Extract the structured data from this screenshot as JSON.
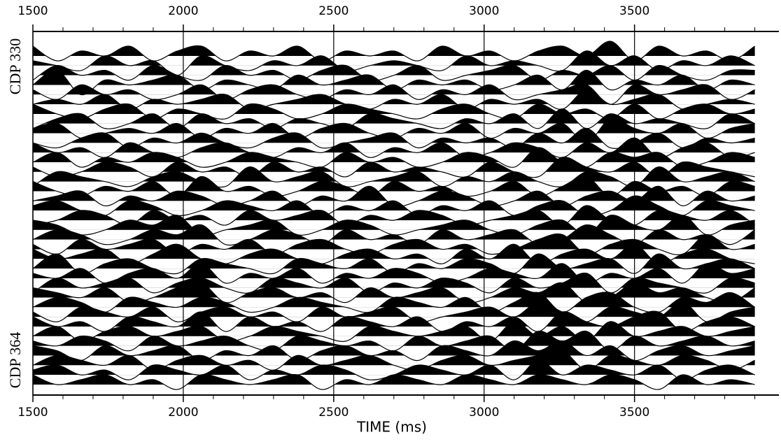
{
  "chart_data": {
    "type": "wiggle",
    "x_label": "TIME (ms)",
    "first_trace_label": "CDP 330",
    "last_trace_label": "CDP 364",
    "xlim": [
      1500,
      3980
    ],
    "xticks": [
      1500,
      2000,
      2500,
      3000,
      3500
    ],
    "xminor_ticks": [
      1600,
      1700,
      1800,
      1900,
      2100,
      2200,
      2300,
      2400,
      2600,
      2700,
      2800,
      2900,
      3100,
      3200,
      3300,
      3400,
      3600,
      3700,
      3800,
      3900
    ],
    "grid": true,
    "color": "#000000",
    "x": [
      1500,
      1580,
      1660,
      1740,
      1820,
      1900,
      1980,
      2060,
      2140,
      2220,
      2300,
      2380,
      2460,
      2540,
      2620,
      2700,
      2780,
      2860,
      2940,
      3020,
      3100,
      3180,
      3260,
      3340,
      3420,
      3500,
      3580,
      3660,
      3740,
      3820,
      3900
    ],
    "series": [
      {
        "values": [
          2,
          -1,
          1,
          0,
          2,
          -1,
          1,
          2,
          -1,
          1,
          0,
          2,
          -1,
          1,
          0,
          1,
          -1,
          2,
          0,
          1,
          -1,
          1,
          2,
          0,
          3,
          -1,
          2,
          0,
          1,
          -1,
          2
        ]
      },
      {
        "values": [
          1,
          0,
          -1,
          2,
          0,
          1,
          -2,
          2,
          0,
          -1,
          1,
          0,
          2,
          -1,
          0,
          1,
          0,
          -1,
          2,
          0,
          1,
          0,
          -1,
          3,
          0,
          2,
          -1,
          1,
          0,
          2,
          0
        ]
      },
      {
        "values": [
          -1,
          2,
          0,
          1,
          -1,
          2,
          0,
          -1,
          2,
          0,
          1,
          -1,
          1,
          2,
          -1,
          0,
          2,
          -1,
          0,
          1,
          2,
          -1,
          1,
          0,
          2,
          -1,
          2,
          0,
          -1,
          1,
          1
        ]
      },
      {
        "values": [
          0,
          3,
          -2,
          1,
          0,
          1,
          2,
          -1,
          1,
          0,
          -1,
          2,
          0,
          1,
          2,
          -1,
          1,
          0,
          1,
          -1,
          0,
          2,
          -1,
          3,
          -1,
          1,
          0,
          2,
          -1,
          1,
          0
        ]
      },
      {
        "values": [
          1,
          -1,
          2,
          0,
          1,
          -1,
          0,
          2,
          -1,
          1,
          2,
          0,
          -1,
          1,
          0,
          2,
          -1,
          1,
          0,
          2,
          -1,
          0,
          1,
          2,
          -2,
          2,
          0,
          1,
          2,
          -1,
          1
        ]
      },
      {
        "values": [
          0,
          1,
          0,
          2,
          -1,
          1,
          0,
          1,
          2,
          -1,
          0,
          1,
          2,
          0,
          -1,
          1,
          0,
          2,
          -1,
          1,
          0,
          1,
          -1,
          3,
          0,
          1,
          2,
          -1,
          0,
          1,
          0
        ]
      },
      {
        "values": [
          2,
          0,
          -1,
          1,
          2,
          -1,
          1,
          0,
          -1,
          2,
          1,
          -1,
          0,
          2,
          1,
          0,
          -1,
          1,
          2,
          0,
          -1,
          2,
          0,
          1,
          -1,
          2,
          -1,
          1,
          2,
          0,
          1
        ]
      },
      {
        "values": [
          -1,
          1,
          2,
          -1,
          0,
          2,
          -1,
          2,
          0,
          1,
          -1,
          1,
          0,
          -1,
          2,
          1,
          0,
          -1,
          1,
          0,
          2,
          -1,
          3,
          -1,
          2,
          0,
          1,
          0,
          -1,
          2,
          0
        ]
      },
      {
        "values": [
          1,
          2,
          -1,
          0,
          1,
          0,
          2,
          -1,
          1,
          0,
          2,
          -1,
          1,
          2,
          0,
          -1,
          1,
          0,
          2,
          -1,
          1,
          0,
          2,
          -2,
          3,
          1,
          0,
          2,
          -1,
          1,
          2
        ]
      },
      {
        "values": [
          0,
          -1,
          1,
          2,
          -1,
          1,
          0,
          2,
          0,
          -1,
          1,
          2,
          -1,
          0,
          1,
          2,
          -1,
          1,
          0,
          1,
          -1,
          2,
          0,
          3,
          -1,
          0,
          2,
          -1,
          1,
          0,
          1
        ]
      },
      {
        "values": [
          2,
          0,
          1,
          -1,
          2,
          0,
          -1,
          1,
          2,
          0,
          -1,
          1,
          0,
          2,
          -1,
          1,
          0,
          2,
          -1,
          0,
          2,
          1,
          -1,
          2,
          0,
          3,
          -1,
          1,
          2,
          -1,
          0
        ]
      },
      {
        "values": [
          0,
          2,
          -1,
          1,
          0,
          2,
          1,
          -1,
          0,
          2,
          1,
          0,
          -1,
          2,
          0,
          1,
          -1,
          0,
          2,
          1,
          -1,
          3,
          0,
          -1,
          2,
          1,
          2,
          -1,
          0,
          2,
          1
        ]
      },
      {
        "values": [
          1,
          -1,
          0,
          2,
          1,
          -1,
          2,
          0,
          1,
          -1,
          2,
          0,
          1,
          -1,
          2,
          0,
          1,
          0,
          -1,
          2,
          0,
          -1,
          3,
          1,
          0,
          2,
          -1,
          2,
          1,
          0,
          -1
        ]
      },
      {
        "values": [
          -1,
          2,
          1,
          0,
          -1,
          1,
          2,
          0,
          -1,
          3,
          0,
          1,
          2,
          -1,
          0,
          1,
          2,
          -1,
          1,
          0,
          2,
          0,
          -1,
          2,
          1,
          -1,
          3,
          0,
          1,
          2,
          0
        ]
      },
      {
        "values": [
          2,
          0,
          -1,
          1,
          0,
          2,
          -1,
          3,
          0,
          1,
          -1,
          0,
          2,
          1,
          -1,
          2,
          0,
          1,
          -1,
          0,
          2,
          -1,
          1,
          3,
          -1,
          2,
          0,
          1,
          -1,
          2,
          1
        ]
      },
      {
        "values": [
          0,
          1,
          2,
          -1,
          1,
          0,
          2,
          1,
          -1,
          0,
          2,
          -1,
          1,
          0,
          3,
          -1,
          0,
          2,
          1,
          -1,
          0,
          2,
          -1,
          1,
          2,
          0,
          3,
          -1,
          2,
          0,
          1
        ]
      },
      {
        "values": [
          1,
          2,
          0,
          -1,
          2,
          1,
          -1,
          0,
          2,
          1,
          0,
          2,
          -1,
          1,
          0,
          2,
          -1,
          1,
          0,
          2,
          -1,
          1,
          2,
          -1,
          0,
          3,
          1,
          -1,
          2,
          1,
          0
        ]
      },
      {
        "values": [
          -1,
          0,
          2,
          1,
          -1,
          2,
          0,
          1,
          -1,
          2,
          0,
          1,
          2,
          -1,
          1,
          0,
          2,
          1,
          -1,
          0,
          1,
          2,
          -1,
          3,
          0,
          -1,
          2,
          1,
          0,
          2,
          -1
        ]
      },
      {
        "values": [
          2,
          1,
          -1,
          0,
          2,
          1,
          3,
          -1,
          0,
          1,
          2,
          -1,
          0,
          2,
          1,
          -1,
          0,
          1,
          2,
          0,
          -1,
          1,
          2,
          -1,
          3,
          1,
          0,
          3,
          -1,
          1,
          2
        ]
      },
      {
        "values": [
          0,
          2,
          1,
          -1,
          0,
          2,
          1,
          3,
          -1,
          0,
          2,
          1,
          -1,
          2,
          0,
          1,
          -1,
          2,
          0,
          1,
          2,
          -1,
          0,
          3,
          1,
          -1,
          2,
          0,
          1,
          -1,
          2
        ]
      },
      {
        "values": [
          1,
          -1,
          2,
          0,
          1,
          2,
          -1,
          1,
          0,
          2,
          -1,
          1,
          2,
          0,
          -1,
          1,
          2,
          0,
          1,
          -1,
          0,
          2,
          3,
          -1,
          1,
          2,
          0,
          -1,
          3,
          0,
          1
        ]
      },
      {
        "values": [
          2,
          0,
          1,
          2,
          -1,
          1,
          3,
          0,
          -1,
          1,
          2,
          0,
          -1,
          1,
          2,
          0,
          1,
          -1,
          2,
          0,
          3,
          -1,
          1,
          2,
          0,
          3,
          -1,
          1,
          2,
          0,
          -1
        ]
      },
      {
        "values": [
          0,
          3,
          -1,
          1,
          2,
          0,
          -1,
          2,
          1,
          0,
          -1,
          2,
          1,
          0,
          2,
          -1,
          1,
          0,
          2,
          1,
          -1,
          3,
          0,
          1,
          2,
          -1,
          3,
          0,
          1,
          2,
          0
        ]
      },
      {
        "values": [
          1,
          0,
          2,
          -1,
          1,
          2,
          0,
          3,
          -1,
          1,
          0,
          2,
          -1,
          1,
          0,
          2,
          1,
          -1,
          0,
          2,
          1,
          0,
          3,
          -1,
          1,
          0,
          2,
          -1,
          3,
          1,
          2
        ]
      },
      {
        "values": [
          -1,
          2,
          0,
          1,
          2,
          -1,
          1,
          2,
          0,
          -1,
          2,
          1,
          0,
          2,
          -1,
          1,
          0,
          2,
          1,
          -1,
          2,
          0,
          1,
          3,
          -1,
          2,
          1,
          0,
          -1,
          2,
          1
        ]
      },
      {
        "values": [
          2,
          1,
          0,
          2,
          -1,
          0,
          2,
          3,
          -1,
          1,
          2,
          0,
          1,
          -1,
          2,
          0,
          1,
          2,
          -1,
          0,
          2,
          1,
          3,
          -1,
          0,
          3,
          1,
          2,
          0,
          -1,
          2
        ]
      },
      {
        "values": [
          0,
          2,
          1,
          -1,
          2,
          1,
          0,
          2,
          1,
          -1,
          0,
          2,
          1,
          0,
          -1,
          2,
          1,
          0,
          2,
          -1,
          1,
          3,
          -1,
          2,
          3,
          0,
          -1,
          2,
          1,
          3,
          0
        ]
      },
      {
        "values": [
          1,
          -1,
          2,
          1,
          0,
          2,
          -1,
          1,
          2,
          0,
          1,
          -1,
          2,
          0,
          1,
          2,
          -1,
          0,
          1,
          2,
          0,
          3,
          1,
          -1,
          2,
          1,
          0,
          3,
          -1,
          1,
          2
        ]
      },
      {
        "values": [
          2,
          0,
          1,
          -1,
          2,
          1,
          0,
          3,
          -1,
          2,
          0,
          1,
          -1,
          2,
          1,
          0,
          2,
          -1,
          1,
          0,
          2,
          -1,
          3,
          1,
          0,
          2,
          3,
          -1,
          1,
          2,
          0
        ]
      },
      {
        "values": [
          0,
          2,
          -1,
          1,
          2,
          0,
          1,
          2,
          -1,
          0,
          2,
          1,
          0,
          -1,
          2,
          1,
          0,
          1,
          2,
          -1,
          3,
          0,
          2,
          -1,
          3,
          0,
          1,
          2,
          0,
          1,
          2
        ]
      },
      {
        "values": [
          1,
          0,
          2,
          1,
          -1,
          2,
          0,
          1,
          2,
          0,
          -1,
          2,
          1,
          0,
          1,
          -1,
          2,
          0,
          1,
          2,
          -1,
          3,
          1,
          3,
          -1,
          2,
          0,
          1,
          2,
          0,
          1
        ]
      },
      {
        "values": [
          2,
          1,
          -1,
          2,
          0,
          1,
          2,
          -1,
          1,
          0,
          2,
          -1,
          1,
          2,
          0,
          1,
          -1,
          2,
          1,
          0,
          3,
          1,
          3,
          0,
          2,
          -1,
          1,
          2,
          0,
          1,
          2
        ]
      },
      {
        "values": [
          0,
          2,
          1,
          0,
          2,
          -1,
          1,
          2,
          0,
          1,
          -1,
          2,
          0,
          1,
          2,
          0,
          -1,
          1,
          2,
          0,
          1,
          2,
          3,
          -1,
          2,
          1,
          0,
          2,
          1,
          -1,
          1
        ]
      },
      {
        "values": [
          1,
          2,
          0,
          1,
          -1,
          2,
          1,
          0,
          2,
          -1,
          1,
          0,
          2,
          1,
          -1,
          0,
          2,
          1,
          0,
          2,
          -1,
          3,
          0,
          2,
          1,
          0,
          2,
          -1,
          1,
          2,
          0
        ]
      },
      {
        "values": [
          2,
          0,
          1,
          2,
          0,
          1,
          -1,
          2,
          1,
          0,
          1,
          2,
          -1,
          1,
          0,
          2,
          1,
          0,
          2,
          1,
          0,
          2,
          1,
          0,
          2,
          1,
          -1,
          2,
          0,
          1,
          0
        ]
      }
    ]
  }
}
